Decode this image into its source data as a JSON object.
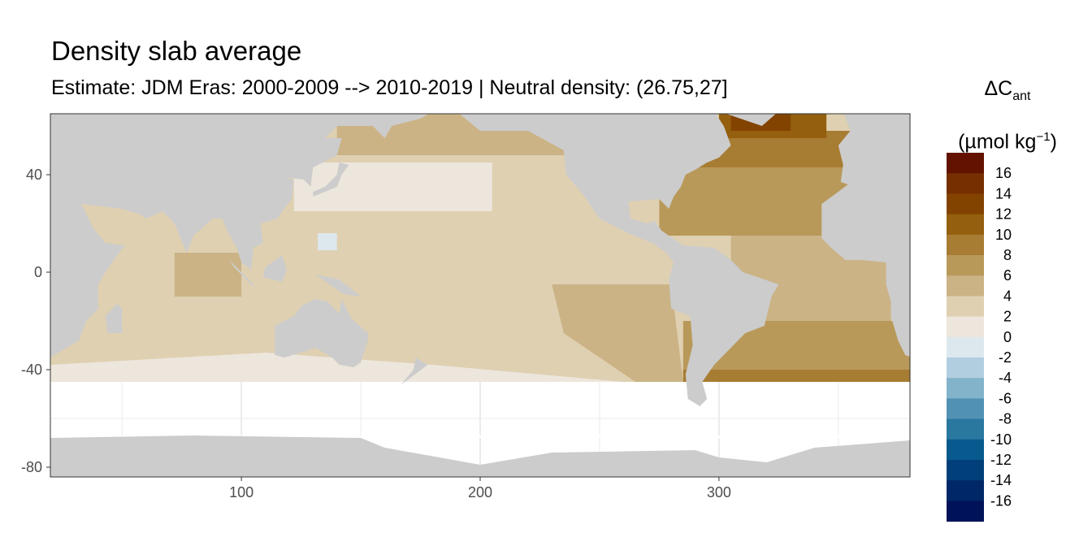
{
  "chart_data": {
    "type": "heatmap",
    "title": "Density slab average",
    "subtitle": "Estimate: JDM Eras: 2000-2009 --> 2010-2019 | Neutral density: (26.75,27]",
    "xlabel": "",
    "ylabel": "",
    "xlim": [
      20,
      380
    ],
    "ylim": [
      -84,
      65
    ],
    "x_ticks": [
      100,
      200,
      300
    ],
    "y_ticks": [
      40,
      0,
      -40,
      -80
    ],
    "grid": true,
    "land_color": "#cccccc",
    "no_data_color": "#ffffff",
    "legend": {
      "title": "ΔC",
      "title_sub": "ant",
      "unit_prefix": "(µmol kg",
      "unit_sup": "−1",
      "unit_suffix": ")",
      "placement": "right",
      "breaks": [
        -18,
        -16,
        -14,
        -12,
        -10,
        -8,
        -6,
        -4,
        -2,
        0,
        2,
        4,
        6,
        8,
        10,
        12,
        14,
        16,
        18
      ],
      "labels": [
        16,
        14,
        12,
        10,
        8,
        6,
        4,
        2,
        0,
        -2,
        -4,
        -6,
        -8,
        -10,
        -12,
        -14,
        -16
      ],
      "colors_high_to_low": [
        "#631200",
        "#762f00",
        "#834300",
        "#945f0e",
        "#a77c33",
        "#b9995a",
        "#cbb386",
        "#dfd0b2",
        "#ede6dc",
        "#dde8ee",
        "#b1cee0",
        "#82b3cb",
        "#5192b4",
        "#2a77a0",
        "#085a8e",
        "#003f7a",
        "#002768",
        "#001259"
      ]
    },
    "regions_approx": [
      {
        "region": "Pacific/Indian interior",
        "value_range": [
          2,
          4
        ]
      },
      {
        "region": "North Pacific subtropical & Southern mid-latitudes",
        "value_range": [
          0,
          2
        ]
      },
      {
        "region": "South Atlantic",
        "value_range": [
          6,
          8
        ]
      },
      {
        "region": "South Atlantic ~45S",
        "value_range": [
          8,
          10
        ]
      },
      {
        "region": "North Atlantic subtropics",
        "value_range": [
          6,
          8
        ]
      },
      {
        "region": "North Atlantic subpolar",
        "value_range": [
          10,
          14
        ]
      },
      {
        "region": "Western Pacific warm pool patch",
        "value_range": [
          -2,
          0
        ]
      }
    ]
  }
}
